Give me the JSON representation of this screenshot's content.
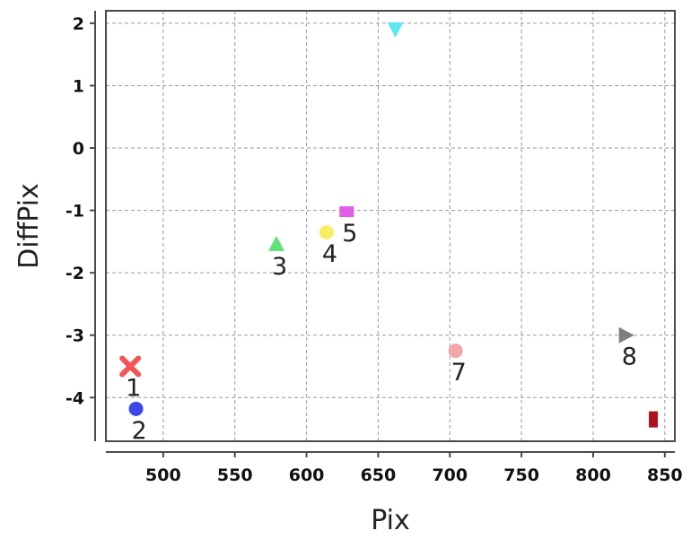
{
  "chart_data": {
    "type": "scatter",
    "title": "",
    "xlabel": "Pix",
    "ylabel": "DiffPix",
    "xlim": [
      460,
      857
    ],
    "ylim": [
      -4.7,
      2.2
    ],
    "xticks": [
      500,
      550,
      600,
      650,
      700,
      750,
      800,
      850
    ],
    "yticks": [
      2,
      1,
      0,
      -1,
      -2,
      -3,
      -4
    ],
    "grid": true,
    "legend": "none",
    "points": [
      {
        "label": "1",
        "x": 477,
        "y": -3.5,
        "marker": "x",
        "color": "#f25555"
      },
      {
        "label": "2",
        "x": 481,
        "y": -4.18,
        "marker": "circle",
        "color": "#3b47e8"
      },
      {
        "label": "3",
        "x": 579,
        "y": -1.55,
        "marker": "triangle-up",
        "color": "#5fe27a"
      },
      {
        "label": "4",
        "x": 614,
        "y": -1.35,
        "marker": "circle",
        "color": "#f7ef63"
      },
      {
        "label": "5",
        "x": 628,
        "y": -1.02,
        "marker": "square",
        "color": "#e05ee8"
      },
      {
        "label": "",
        "x": 662,
        "y": 1.9,
        "marker": "triangle-down",
        "color": "#5fe6f2"
      },
      {
        "label": "7",
        "x": 704,
        "y": -3.25,
        "marker": "circle",
        "color": "#f2a6a6"
      },
      {
        "label": "8",
        "x": 823,
        "y": -3.0,
        "marker": "triangle-right",
        "color": "#7f7f7f"
      },
      {
        "label": "",
        "x": 842,
        "y": -4.35,
        "marker": "rect",
        "color": "#b0121c"
      }
    ]
  }
}
